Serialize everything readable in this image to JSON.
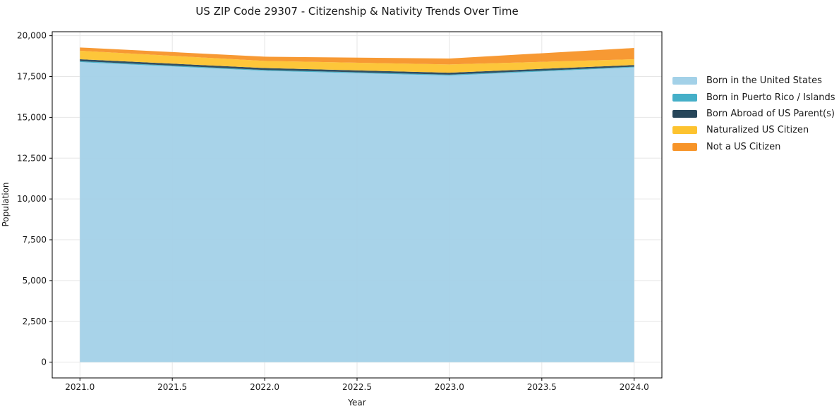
{
  "title": "US ZIP Code 29307 - Citizenship & Nativity Trends Over Time",
  "chart_data": {
    "type": "area",
    "stacked": true,
    "title": "US ZIP Code 29307 - Citizenship & Nativity Trends Over Time",
    "xlabel": "Year",
    "ylabel": "Population",
    "x": [
      2021,
      2022,
      2023,
      2024
    ],
    "series": [
      {
        "name": "Born in the United States",
        "color": "#a3d1e8",
        "values": [
          18385,
          17850,
          17560,
          18060
        ]
      },
      {
        "name": "Born in Puerto Rico / Islands",
        "color": "#45afc8",
        "values": [
          55,
          50,
          55,
          45
        ]
      },
      {
        "name": "Born Abroad of US Parent(s)",
        "color": "#26465a",
        "values": [
          120,
          120,
          120,
          100
        ]
      },
      {
        "name": "Naturalized US Citizen",
        "color": "#fdc32f",
        "values": [
          520,
          435,
          505,
          355
        ]
      },
      {
        "name": "Not a US Citizen",
        "color": "#f79428",
        "values": [
          200,
          260,
          360,
          690
        ]
      }
    ],
    "stack_totals": [
      19280,
      18715,
      18600,
      19250
    ],
    "xlim": [
      2020.85,
      2024.15
    ],
    "ylim": [
      -964,
      20244
    ],
    "x_tick_values": [
      2021.0,
      2021.5,
      2022.0,
      2022.5,
      2023.0,
      2023.5,
      2024.0
    ],
    "x_tick_labels": [
      "2021.0",
      "2021.5",
      "2022.0",
      "2022.5",
      "2023.0",
      "2023.5",
      "2024.0"
    ],
    "y_tick_values": [
      0,
      2500,
      5000,
      7500,
      10000,
      12500,
      15000,
      17500,
      20000
    ],
    "y_tick_labels": [
      "0",
      "2,500",
      "5,000",
      "7,500",
      "10,000",
      "12,500",
      "15,000",
      "17,500",
      "20,000"
    ],
    "grid": true,
    "grid_color": "#e6e6e6",
    "spine_color": "#000000",
    "text_color": "#1a1a1a",
    "legend_position": "outside-right"
  }
}
